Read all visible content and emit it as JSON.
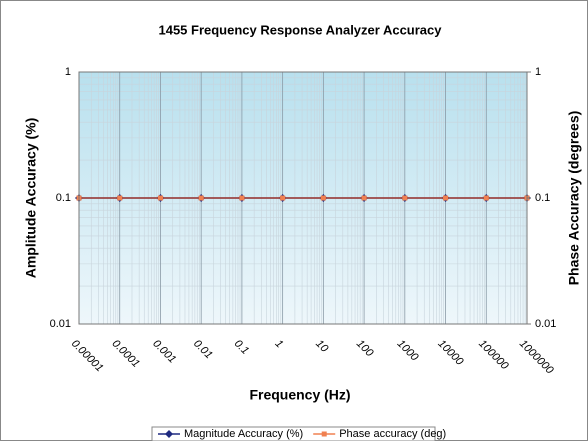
{
  "chart_data": {
    "type": "line",
    "title": "1455 Frequency Response Analyzer Accuracy",
    "x_label": "Frequency (Hz)",
    "y_label": "Amplitude Accuracy (%)",
    "y2_label": "Phase Accuracy (degrees)",
    "x": [
      1e-05,
      0.0001,
      0.001,
      0.01,
      0.1,
      1,
      10,
      100,
      1000,
      10000,
      100000,
      1000000
    ],
    "xscale": "log",
    "yscale": "log",
    "y2scale": "log",
    "xlim": [
      1e-05,
      1000000
    ],
    "xticks": [
      {
        "value": 1e-05,
        "label": "0.00001"
      },
      0.0001,
      0.001,
      0.01,
      0.1,
      1,
      10,
      100,
      1000,
      10000,
      100000,
      1000000
    ],
    "ylim": [
      0.01,
      1
    ],
    "yticks": [
      0.01,
      0.1,
      1
    ],
    "y2lim": [
      0.01,
      1
    ],
    "y2ticks": [
      0.01,
      0.1,
      1
    ],
    "grid": true,
    "minor_grid": true,
    "legend": "bottom",
    "series": [
      {
        "name": "Magnitude Accuracy (%)",
        "color": "#1f2a80",
        "marker": "diamond",
        "values": [
          0.1,
          0.1,
          0.1,
          0.1,
          0.1,
          0.1,
          0.1,
          0.1,
          0.1,
          0.1,
          0.1,
          0.1
        ]
      },
      {
        "name": "Phase accuracy (deg)",
        "color": "#f08050",
        "marker": "square",
        "axis": "y2",
        "values": [
          0.1,
          0.1,
          0.1,
          0.1,
          0.1,
          0.1,
          0.1,
          0.1,
          0.1,
          0.1,
          0.1,
          0.1
        ]
      }
    ]
  }
}
